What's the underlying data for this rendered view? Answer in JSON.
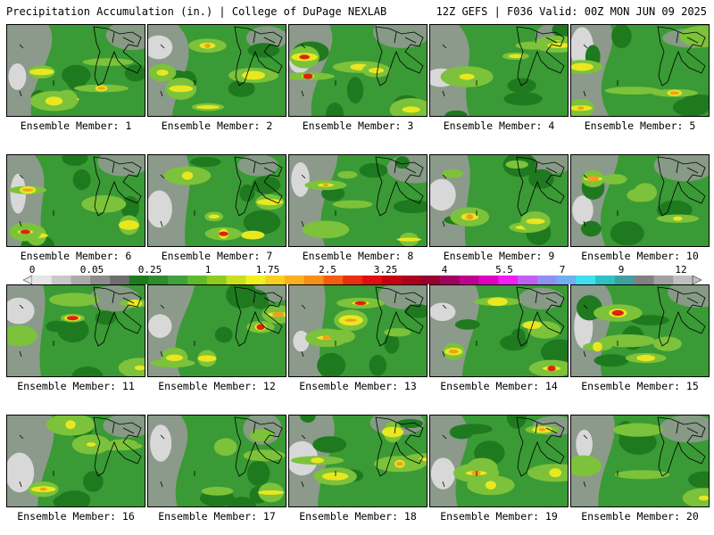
{
  "header": {
    "left": "Precipitation Accumulation (in.) | College of DuPage NEXLAB",
    "right": "12Z GEFS | F036 Valid: 00Z MON JUN 09 2025"
  },
  "panels": [
    {
      "label": "Ensemble Member: 1"
    },
    {
      "label": "Ensemble Member: 2"
    },
    {
      "label": "Ensemble Member: 3"
    },
    {
      "label": "Ensemble Member: 4"
    },
    {
      "label": "Ensemble Member: 5"
    },
    {
      "label": "Ensemble Member: 6"
    },
    {
      "label": "Ensemble Member: 7"
    },
    {
      "label": "Ensemble Member: 8"
    },
    {
      "label": "Ensemble Member: 9"
    },
    {
      "label": "Ensemble Member: 10"
    },
    {
      "label": "Ensemble Member: 11"
    },
    {
      "label": "Ensemble Member: 12"
    },
    {
      "label": "Ensemble Member: 13"
    },
    {
      "label": "Ensemble Member: 14"
    },
    {
      "label": "Ensemble Member: 15"
    },
    {
      "label": "Ensemble Member: 16"
    },
    {
      "label": "Ensemble Member: 17"
    },
    {
      "label": "Ensemble Member: 18"
    },
    {
      "label": "Ensemble Member: 19"
    },
    {
      "label": "Ensemble Member: 20"
    }
  ],
  "colorbar": {
    "labels": [
      "0",
      "0.05",
      "0.25",
      "1",
      "1.75",
      "2.5",
      "3.25",
      "4",
      "5.5",
      "7",
      "9",
      "12"
    ],
    "colors": [
      "#e6e6e6",
      "#c8c8c8",
      "#aaaaaa",
      "#8c8c8c",
      "#6e6e6e",
      "#1e7a1e",
      "#2e8b2e",
      "#3ea33e",
      "#5fba2a",
      "#8fcc20",
      "#c8e020",
      "#f0f020",
      "#f8d020",
      "#f8b020",
      "#f89018",
      "#f06010",
      "#e83010",
      "#e01010",
      "#c80010",
      "#b00020",
      "#980030",
      "#a00060",
      "#c00090",
      "#e000c0",
      "#f020f0",
      "#c060f0",
      "#9090f0",
      "#70b0f0",
      "#40e0f0",
      "#30c0c0",
      "#40a0a0",
      "#808080",
      "#a0a0a0",
      "#c0c0c0"
    ]
  },
  "colors": {
    "field_green": "#3a9a35",
    "field_dark_green": "#1f7a1f",
    "field_light_green": "#7cc23a",
    "field_yellow": "#e8e820",
    "field_orange": "#f0a020",
    "field_red": "#e02010",
    "field_gray": "#9a9a9a",
    "field_light_gray": "#d8d8d8"
  }
}
